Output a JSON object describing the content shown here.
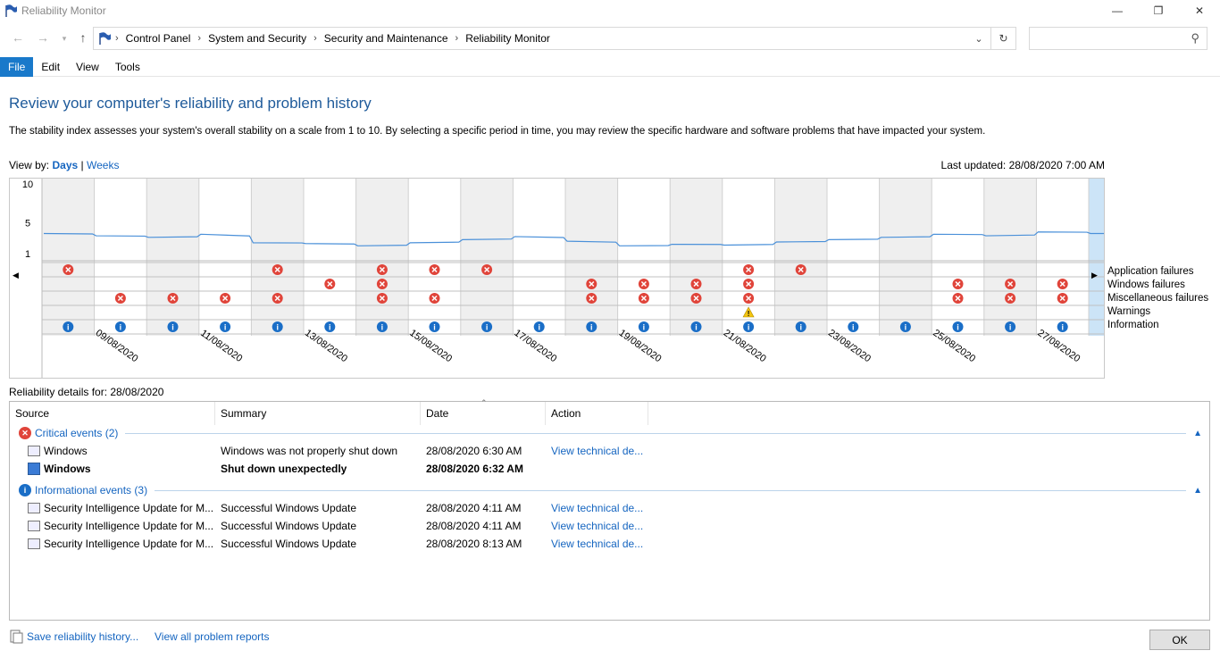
{
  "window": {
    "title": "Reliability Monitor",
    "minimize": "—",
    "maximize": "❐",
    "close": "✕"
  },
  "breadcrumbs": [
    "Control Panel",
    "System and Security",
    "Security and Maintenance",
    "Reliability Monitor"
  ],
  "search": {
    "placeholder": ""
  },
  "menu": [
    {
      "label": "File",
      "active": true
    },
    {
      "label": "Edit"
    },
    {
      "label": "View"
    },
    {
      "label": "Tools"
    }
  ],
  "page": {
    "heading": "Review your computer's reliability and problem history",
    "description": "The stability index assesses your system's overall stability on a scale from 1 to 10. By selecting a specific period in time, you may review the specific hardware and software problems that have impacted your system.",
    "view_by_label": "View by:",
    "view_days": "Days",
    "view_separator": "|",
    "view_weeks": "Weeks",
    "last_updated": "Last updated: 28/08/2020 7:00 AM"
  },
  "chart_data": {
    "type": "line",
    "y_ticks": [
      "10",
      "5",
      "1"
    ],
    "ylim": [
      1,
      10
    ],
    "dates": [
      "08/08/2020",
      "09/08/2020",
      "10/08/2020",
      "11/08/2020",
      "12/08/2020",
      "13/08/2020",
      "14/08/2020",
      "15/08/2020",
      "16/08/2020",
      "17/08/2020",
      "18/08/2020",
      "19/08/2020",
      "20/08/2020",
      "21/08/2020",
      "22/08/2020",
      "23/08/2020",
      "24/08/2020",
      "25/08/2020",
      "26/08/2020",
      "27/08/2020",
      "28/08/2020"
    ],
    "date_labels": [
      "09/08/2020",
      "11/08/2020",
      "13/08/2020",
      "15/08/2020",
      "17/08/2020",
      "19/08/2020",
      "21/08/2020",
      "23/08/2020",
      "25/08/2020",
      "27/08/2020"
    ],
    "stability_index": [
      3.6,
      3.3,
      3.1,
      3.5,
      2.4,
      2.3,
      2.0,
      2.4,
      2.8,
      3.2,
      2.6,
      2.0,
      2.2,
      2.1,
      2.5,
      2.8,
      3.1,
      3.5,
      3.3,
      3.8,
      3.6
    ],
    "selected_index": 20,
    "rows": [
      {
        "name": "Application failures",
        "days": [
          1,
          0,
          0,
          0,
          1,
          0,
          1,
          1,
          1,
          0,
          0,
          0,
          0,
          1,
          1,
          0,
          0,
          0,
          0,
          0,
          0
        ]
      },
      {
        "name": "Windows failures",
        "days": [
          0,
          0,
          0,
          0,
          0,
          1,
          1,
          0,
          0,
          0,
          1,
          1,
          1,
          1,
          0,
          0,
          0,
          1,
          1,
          1,
          1
        ]
      },
      {
        "name": "Miscellaneous failures",
        "days": [
          0,
          1,
          1,
          1,
          1,
          0,
          1,
          1,
          0,
          0,
          1,
          1,
          1,
          1,
          0,
          0,
          0,
          1,
          1,
          1,
          1
        ]
      },
      {
        "name": "Warnings",
        "days": [
          0,
          0,
          0,
          0,
          0,
          0,
          0,
          0,
          0,
          0,
          0,
          0,
          0,
          1,
          0,
          0,
          0,
          0,
          0,
          0,
          0
        ]
      },
      {
        "name": "Information",
        "days": [
          1,
          1,
          1,
          1,
          1,
          1,
          1,
          1,
          1,
          1,
          1,
          1,
          1,
          1,
          1,
          1,
          1,
          1,
          1,
          1,
          1
        ]
      }
    ]
  },
  "details": {
    "label": "Reliability details for: 28/08/2020",
    "columns": [
      "Source",
      "Summary",
      "Date",
      "Action"
    ],
    "groups": [
      {
        "title": "Critical events (2)",
        "type": "critical",
        "rows": [
          {
            "source": "Windows",
            "summary": "Windows was not properly shut down",
            "date": "28/08/2020 6:30 AM",
            "action": "View technical de...",
            "bold": false
          },
          {
            "source": "Windows",
            "summary": "Shut down unexpectedly",
            "date": "28/08/2020 6:32 AM",
            "action": "",
            "bold": true
          }
        ]
      },
      {
        "title": "Informational events (3)",
        "type": "info",
        "rows": [
          {
            "source": "Security Intelligence Update for M...",
            "summary": "Successful Windows Update",
            "date": "28/08/2020 4:11 AM",
            "action": "View technical de...",
            "bold": false
          },
          {
            "source": "Security Intelligence Update for M...",
            "summary": "Successful Windows Update",
            "date": "28/08/2020 4:11 AM",
            "action": "View technical de...",
            "bold": false
          },
          {
            "source": "Security Intelligence Update for M...",
            "summary": "Successful Windows Update",
            "date": "28/08/2020 8:13 AM",
            "action": "View technical de...",
            "bold": false
          }
        ]
      }
    ]
  },
  "footer": {
    "save": "Save reliability history...",
    "view_all": "View all problem reports",
    "ok": "OK"
  },
  "colors": {
    "critical": "#e0443a",
    "info": "#1a6ec7",
    "warning": "#f2c40f",
    "line": "#4a90d9",
    "selected": "#cce4f7",
    "shade": "#efefef"
  }
}
